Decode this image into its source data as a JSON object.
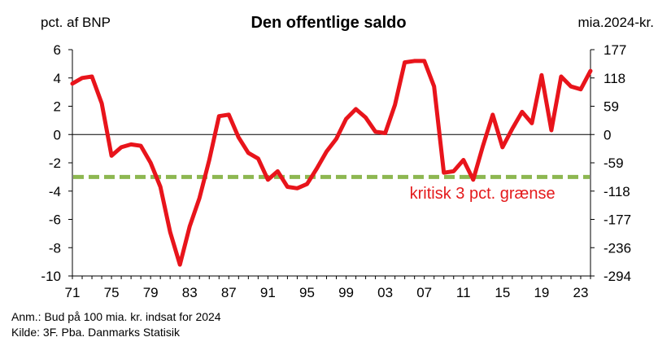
{
  "chart_data": {
    "type": "line",
    "title": "Den offentlige saldo",
    "ylabel_left": "pct. af BNP",
    "ylabel_right": "mia.2024-kr.",
    "ylim": [
      -10,
      6
    ],
    "y_ticks_left": [
      "6",
      "4",
      "2",
      "0",
      "-2",
      "-4",
      "-6",
      "-8",
      "-10"
    ],
    "y_ticks_right": [
      "177",
      "118",
      "59",
      "0",
      "-59",
      "-118",
      "-177",
      "-236",
      "-294"
    ],
    "x_tick_labels": [
      "71",
      "75",
      "79",
      "83",
      "87",
      "91",
      "95",
      "99",
      "03",
      "07",
      "11",
      "15",
      "19",
      "23"
    ],
    "x_tick_years": [
      1971,
      1975,
      1979,
      1983,
      1987,
      1991,
      1995,
      1999,
      2003,
      2007,
      2011,
      2015,
      2019,
      2023
    ],
    "grid": false,
    "series": [
      {
        "color": "#e8141b",
        "x": [
          1971,
          1972,
          1973,
          1974,
          1975,
          1976,
          1977,
          1978,
          1979,
          1980,
          1981,
          1982,
          1983,
          1984,
          1985,
          1986,
          1987,
          1988,
          1989,
          1990,
          1991,
          1992,
          1993,
          1994,
          1995,
          1996,
          1997,
          1998,
          1999,
          2000,
          2001,
          2002,
          2003,
          2004,
          2005,
          2006,
          2007,
          2008,
          2009,
          2010,
          2011,
          2012,
          2013,
          2014,
          2015,
          2016,
          2017,
          2018,
          2019,
          2020,
          2021,
          2022,
          2023,
          2024
        ],
        "values": [
          3.6,
          4.0,
          4.1,
          2.2,
          -1.5,
          -0.9,
          -0.7,
          -0.8,
          -2.0,
          -3.7,
          -6.9,
          -9.2,
          -6.5,
          -4.5,
          -1.8,
          1.3,
          1.4,
          -0.2,
          -1.3,
          -1.7,
          -3.2,
          -2.6,
          -3.7,
          -3.8,
          -3.5,
          -2.4,
          -1.2,
          -0.3,
          1.1,
          1.8,
          1.2,
          0.2,
          0.1,
          2.1,
          5.1,
          5.2,
          5.2,
          3.4,
          -2.7,
          -2.6,
          -1.8,
          -3.2,
          -0.8,
          1.4,
          -0.9,
          0.4,
          1.6,
          0.8,
          4.2,
          0.3,
          4.1,
          3.4,
          3.2,
          4.5
        ]
      },
      {
        "name": "kritisk 3 pct. grænse",
        "color": "#8db751",
        "dashed": true,
        "x": [
          1971,
          2024
        ],
        "values": [
          -3,
          -3
        ]
      }
    ],
    "annotations": [
      {
        "text": "kritisk 3 pct. grænse",
        "x": 2005.5,
        "y": -4.2
      }
    ]
  },
  "notes": {
    "anm": "Anm.: Bud på 100 mia. kr. indsat for 2024",
    "kilde": "Kilde: 3F. Pba. Danmarks Statisik"
  }
}
